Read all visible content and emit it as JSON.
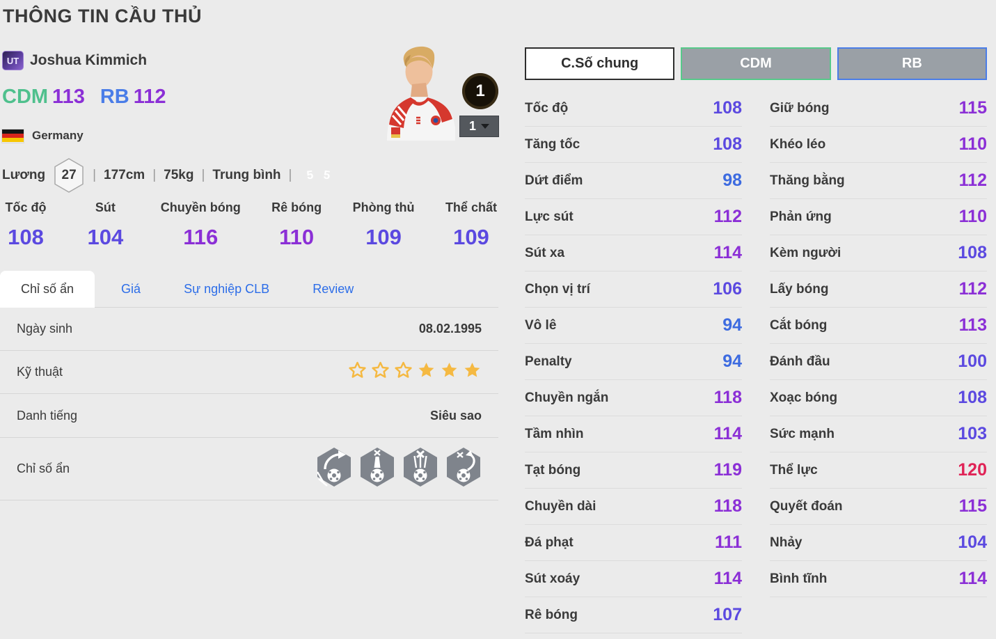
{
  "page": {
    "title": "THÔNG TIN CẦU THỦ",
    "background": "#ebebeb"
  },
  "player": {
    "card_type": "UT",
    "name": "Joshua Kimmich",
    "positions": [
      {
        "label": "CDM",
        "rating": "113",
        "color": "#4fc08d"
      },
      {
        "label": "RB",
        "rating": "112",
        "color": "#4a7de8"
      }
    ],
    "rating_color": "#8b2fd6",
    "nation": "Germany",
    "salary_label": "Lương",
    "salary": "27",
    "separator": "|",
    "height": "177cm",
    "weight": "75kg",
    "body_type": "Trung bình",
    "foot_left": "5",
    "foot_right": "5",
    "level_badge": "1",
    "level_select": "1"
  },
  "main_stats": [
    {
      "label": "Tốc độ",
      "value": 108
    },
    {
      "label": "Sút",
      "value": 104
    },
    {
      "label": "Chuyền bóng",
      "value": 116
    },
    {
      "label": "Rê bóng",
      "value": 110
    },
    {
      "label": "Phòng thủ",
      "value": 109
    },
    {
      "label": "Thể chất",
      "value": 109
    }
  ],
  "tabs": [
    {
      "label": "Chỉ số ẩn",
      "name": "hidden-stats",
      "active": true
    },
    {
      "label": "Giá",
      "name": "price",
      "active": false
    },
    {
      "label": "Sự nghiệp CLB",
      "name": "club-career",
      "active": false
    },
    {
      "label": "Review",
      "name": "review",
      "active": false
    }
  ],
  "info_rows": {
    "birth_label": "Ngày sinh",
    "birth_value": "08.02.1995",
    "skill_label": "Kỹ thuật",
    "stars_outlined": 3,
    "stars_filled": 3,
    "fame_label": "Danh tiếng",
    "fame_value": "Siêu sao",
    "hidden_label": "Chỉ số ẩn",
    "hidden_traits": [
      "trait-finesse-shot-icon",
      "trait-power-header-icon",
      "trait-acrobatic-clearance-icon",
      "trait-flair-pass-icon"
    ]
  },
  "stat_tabs": [
    {
      "label": "C.Số chung",
      "style": "general"
    },
    {
      "label": "CDM",
      "style": "cdm"
    },
    {
      "label": "RB",
      "style": "rb"
    }
  ],
  "detail_stats": {
    "left": [
      {
        "label": "Tốc độ",
        "value": 108
      },
      {
        "label": "Tăng tốc",
        "value": 108
      },
      {
        "label": "Dứt điểm",
        "value": 98
      },
      {
        "label": "Lực sút",
        "value": 112
      },
      {
        "label": "Sút xa",
        "value": 114
      },
      {
        "label": "Chọn vị trí",
        "value": 106
      },
      {
        "label": "Vô lê",
        "value": 94
      },
      {
        "label": "Penalty",
        "value": 94
      },
      {
        "label": "Chuyền ngắn",
        "value": 118
      },
      {
        "label": "Tầm nhìn",
        "value": 114
      },
      {
        "label": "Tạt bóng",
        "value": 119
      },
      {
        "label": "Chuyền dài",
        "value": 118
      },
      {
        "label": "Đá phạt",
        "value": 111
      },
      {
        "label": "Sút xoáy",
        "value": 114
      },
      {
        "label": "Rê bóng",
        "value": 107
      }
    ],
    "right": [
      {
        "label": "Giữ bóng",
        "value": 115
      },
      {
        "label": "Khéo léo",
        "value": 110
      },
      {
        "label": "Thăng bằng",
        "value": 112
      },
      {
        "label": "Phản ứng",
        "value": 110
      },
      {
        "label": "Kèm người",
        "value": 108
      },
      {
        "label": "Lấy bóng",
        "value": 112
      },
      {
        "label": "Cắt bóng",
        "value": 113
      },
      {
        "label": "Đánh đầu",
        "value": 100
      },
      {
        "label": "Xoạc bóng",
        "value": 108
      },
      {
        "label": "Sức mạnh",
        "value": 103
      },
      {
        "label": "Thể lực",
        "value": 120
      },
      {
        "label": "Quyết đoán",
        "value": 115
      },
      {
        "label": "Nhảy",
        "value": 104
      },
      {
        "label": "Bình tĩnh",
        "value": 114
      }
    ]
  },
  "value_colors": {
    "t90": "#3d6be0",
    "t100": "#5b49e0",
    "t110": "#8b2fd6",
    "t120": "#e02356"
  },
  "icon_colors": {
    "star_gold": "#f5b942",
    "foot_left": "#49505a",
    "foot_right": "#6fae3e",
    "trait_gray": "#7f848c",
    "tab_link_blue": "#2c6de8"
  }
}
